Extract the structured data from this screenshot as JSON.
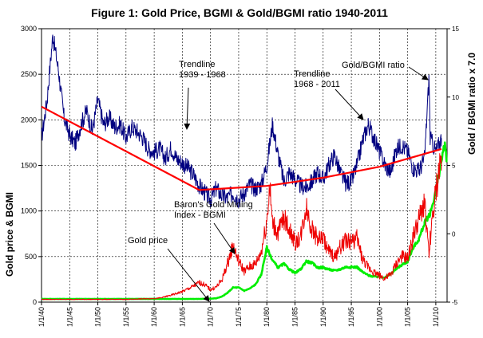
{
  "chart_data": {
    "type": "line",
    "title": "Figure 1: Gold Price,  BGMI   &   Gold/BGMI ratio   1940-2011",
    "ylabel": "Gold price  &  BGMI",
    "y2label": "Gold / BGMI ratio x 7.0",
    "xlim": [
      1940,
      2012
    ],
    "ylim": [
      0,
      3000
    ],
    "y2lim": [
      -5,
      15
    ],
    "yticks": [
      0,
      500,
      1000,
      1500,
      2000,
      2500,
      3000
    ],
    "y2ticks": [
      -5,
      0,
      5,
      10,
      15
    ],
    "y2tick_labels": [
      "-5",
      "0",
      "5",
      "10",
      "15"
    ],
    "xticks": [
      {
        "x": 1940,
        "label": "1/1/40"
      },
      {
        "x": 1945,
        "label": "1/1/45"
      },
      {
        "x": 1950,
        "label": "1/1/50"
      },
      {
        "x": 1955,
        "label": "1/1/55"
      },
      {
        "x": 1960,
        "label": "1/1/60"
      },
      {
        "x": 1965,
        "label": "1/1/65"
      },
      {
        "x": 1970,
        "label": "1/1/70"
      },
      {
        "x": 1975,
        "label": "1/1/75"
      },
      {
        "x": 1980,
        "label": "1/1/80"
      },
      {
        "x": 1985,
        "label": "1/1/85"
      },
      {
        "x": 1990,
        "label": "1/1/90"
      },
      {
        "x": 1995,
        "label": "1/1/95"
      },
      {
        "x": 2000,
        "label": "1/1/00"
      },
      {
        "x": 2005,
        "label": "1/1/05"
      },
      {
        "x": 2010,
        "label": "1/1/10"
      }
    ],
    "grid": true,
    "series": [
      {
        "name": "Gold price",
        "axis": "left",
        "color": "#00ee00",
        "x": [
          1940,
          1945,
          1950,
          1955,
          1960,
          1965,
          1968,
          1970,
          1971,
          1972,
          1973,
          1974,
          1975,
          1976,
          1977,
          1978,
          1979,
          1980,
          1981,
          1982,
          1983,
          1984,
          1985,
          1986,
          1987,
          1988,
          1989,
          1990,
          1991,
          1992,
          1993,
          1994,
          1995,
          1996,
          1997,
          1998,
          1999,
          2000,
          2001,
          2002,
          2003,
          2004,
          2005,
          2006,
          2007,
          2008,
          2009,
          2010,
          2011,
          2011.6,
          2011.9
        ],
        "y": [
          35,
          35,
          35,
          35,
          35,
          35,
          35,
          38,
          42,
          60,
          100,
          160,
          160,
          125,
          150,
          195,
          300,
          600,
          460,
          380,
          420,
          360,
          320,
          360,
          450,
          430,
          380,
          380,
          360,
          345,
          360,
          385,
          385,
          385,
          330,
          295,
          280,
          280,
          270,
          310,
          365,
          410,
          445,
          600,
          690,
          870,
          970,
          1220,
          1550,
          1720,
          1570
        ]
      },
      {
        "name": "Baron's Gold Mining Index - BGMI",
        "axis": "left",
        "color": "#ee0000",
        "x": [
          1940,
          1945,
          1950,
          1955,
          1960,
          1961,
          1962,
          1963,
          1964,
          1965,
          1966,
          1967,
          1968,
          1969,
          1970,
          1971,
          1972,
          1973,
          1974,
          1975,
          1976,
          1977,
          1978,
          1979,
          1980,
          1980.5,
          1981,
          1982,
          1983,
          1984,
          1985,
          1986,
          1987,
          1988,
          1989,
          1990,
          1991,
          1992,
          1993,
          1994,
          1995,
          1996,
          1997,
          1998,
          1999,
          2000,
          2001,
          2002,
          2003,
          2004,
          2005,
          2006,
          2007,
          2008,
          2008.8,
          2009,
          2010,
          2011
        ],
        "y": [
          30,
          30,
          30,
          30,
          40,
          45,
          60,
          75,
          95,
          115,
          145,
          175,
          215,
          190,
          135,
          165,
          240,
          420,
          620,
          450,
          340,
          390,
          420,
          550,
          900,
          1280,
          870,
          760,
          920,
          800,
          650,
          720,
          1050,
          800,
          700,
          700,
          560,
          490,
          600,
          680,
          660,
          700,
          470,
          380,
          330,
          290,
          260,
          300,
          420,
          500,
          480,
          720,
          900,
          1100,
          490,
          700,
          1200,
          1600
        ]
      },
      {
        "name": "Gold/BGMI ratio",
        "axis": "right",
        "color": "#000080",
        "x": [
          1940,
          1941,
          1942,
          1943,
          1944,
          1945,
          1946,
          1947,
          1948,
          1949,
          1950,
          1951,
          1952,
          1953,
          1954,
          1955,
          1956,
          1957,
          1958,
          1959,
          1960,
          1961,
          1962,
          1963,
          1964,
          1965,
          1966,
          1967,
          1968,
          1969,
          1970,
          1971,
          1972,
          1973,
          1974,
          1975,
          1976,
          1977,
          1978,
          1979,
          1980,
          1981,
          1982,
          1983,
          1984,
          1985,
          1986,
          1987,
          1988,
          1989,
          1990,
          1991,
          1992,
          1993,
          1994,
          1995,
          1996,
          1997,
          1998,
          1999,
          2000,
          2001,
          2002,
          2003,
          2004,
          2005,
          2006,
          2007,
          2008,
          2008.8,
          2009,
          2010,
          2011
        ],
        "y": [
          7.0,
          9.8,
          14.5,
          12.0,
          8.5,
          7.2,
          6.6,
          8.0,
          9.0,
          7.5,
          9.8,
          8.0,
          8.5,
          7.8,
          8.0,
          7.0,
          7.8,
          7.5,
          7.0,
          6.2,
          6.0,
          6.2,
          5.5,
          6.3,
          5.5,
          5.2,
          4.8,
          4.3,
          3.5,
          3.0,
          2.5,
          3.3,
          2.8,
          2.6,
          3.0,
          2.5,
          3.0,
          3.6,
          3.3,
          3.6,
          5.0,
          8.0,
          5.8,
          3.8,
          4.5,
          4.0,
          3.5,
          3.4,
          3.8,
          4.5,
          4.0,
          5.0,
          5.8,
          4.5,
          3.7,
          3.8,
          5.0,
          6.8,
          8.0,
          7.0,
          6.0,
          5.0,
          4.5,
          6.2,
          6.5,
          6.0,
          4.8,
          4.6,
          5.5,
          11.5,
          7.0,
          6.0,
          7.0
        ]
      },
      {
        "name": "Trendline 1939 - 1968",
        "axis": "right",
        "color": "#ff0000",
        "x": [
          1940,
          1968
        ],
        "y": [
          9.3,
          3.2
        ]
      },
      {
        "name": "Trendline 1968 - 2011",
        "axis": "right",
        "color": "#ff0000",
        "x": [
          1968,
          1980,
          1990,
          2000,
          2011
        ],
        "y": [
          3.2,
          3.5,
          4.1,
          4.9,
          6.2
        ]
      }
    ],
    "annotations": [
      {
        "text_lines": [
          "Trendline",
          "1939 - 1968"
        ]
      },
      {
        "text_lines": [
          "Trendline",
          "1968 - 2011"
        ]
      },
      {
        "text_lines": [
          "Gold/BGMI ratio"
        ]
      },
      {
        "text_lines": [
          "Baron's Gold Mining",
          "Index - BGMI"
        ]
      },
      {
        "text_lines": [
          "Gold price"
        ]
      }
    ]
  }
}
